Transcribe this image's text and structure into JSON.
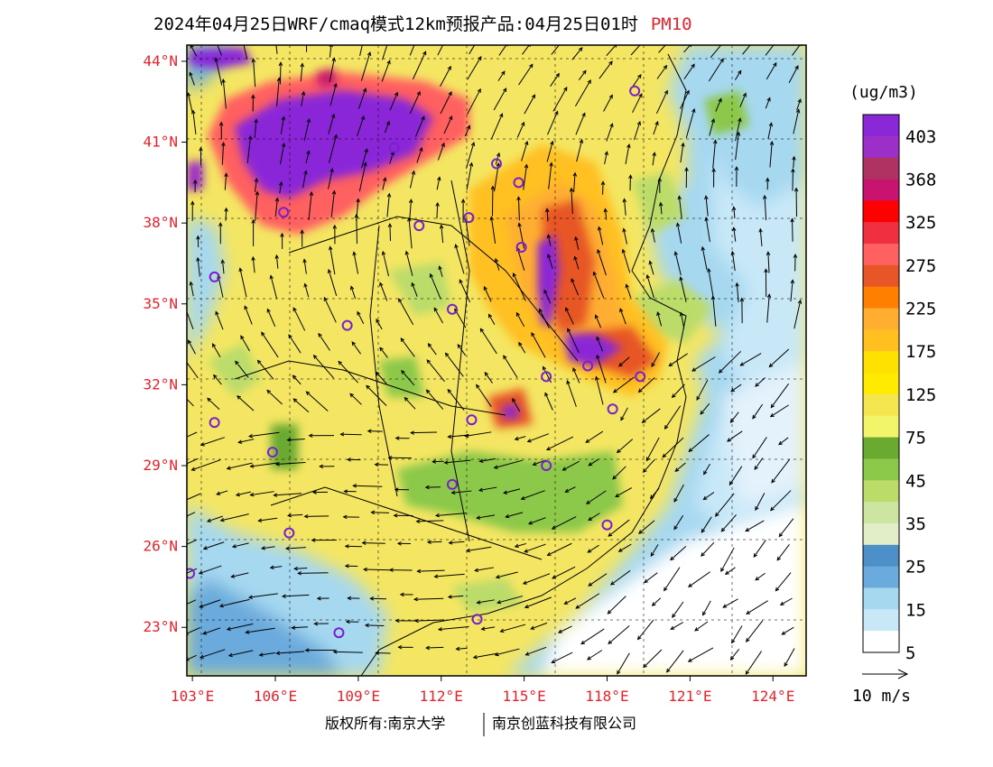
{
  "title": {
    "main": "2024年04月25日WRF/cmaq模式12km预报产品:04月25日01时",
    "species": "PM10"
  },
  "axes": {
    "lat_labels": [
      "44°N",
      "41°N",
      "38°N",
      "35°N",
      "32°N",
      "29°N",
      "26°N",
      "23°N"
    ],
    "lat_values": [
      44,
      41,
      38,
      35,
      32,
      29,
      26,
      23
    ],
    "lon_labels": [
      "103°E",
      "106°E",
      "109°E",
      "112°E",
      "115°E",
      "118°E",
      "121°E",
      "124°E"
    ],
    "lon_values": [
      103,
      106,
      109,
      112,
      115,
      118,
      121,
      124
    ],
    "lon_range": [
      102.8,
      125.2
    ],
    "lat_range": [
      21.2,
      44.6
    ]
  },
  "legend": {
    "unit": "(ug/m3)",
    "labels": [
      "403",
      "368",
      "325",
      "275",
      "225",
      "175",
      "125",
      "75",
      "45",
      "35",
      "25",
      "15",
      "5"
    ],
    "colors": [
      "#8a28d8",
      "#9b2fc8",
      "#ae3262",
      "#c8146e",
      "#ff0000",
      "#f03040",
      "#ff6060",
      "#e85628",
      "#ff8000",
      "#ffae30",
      "#ffc020",
      "#ffe100",
      "#ffea00",
      "#f5e650",
      "#f2f56a",
      "#6aaa30",
      "#8cc84a",
      "#bcdc6a",
      "#cce5a0",
      "#e2eec8",
      "#4d8fc8",
      "#6aaadc",
      "#a6d8f0",
      "#c8e8f8",
      "#ffffff"
    ]
  },
  "wind_scale": {
    "label": "10 m/s"
  },
  "footer": {
    "copyright_label": "版权所有:南京大学",
    "company": "南京创蓝科技有限公司"
  },
  "stations": [
    {
      "lon": 119.0,
      "lat": 42.9
    },
    {
      "lon": 110.3,
      "lat": 40.8
    },
    {
      "lon": 106.3,
      "lat": 38.4
    },
    {
      "lon": 111.2,
      "lat": 37.9
    },
    {
      "lon": 113.0,
      "lat": 38.2
    },
    {
      "lon": 114.0,
      "lat": 40.2
    },
    {
      "lon": 114.8,
      "lat": 39.5
    },
    {
      "lon": 114.9,
      "lat": 37.1
    },
    {
      "lon": 103.8,
      "lat": 36.0
    },
    {
      "lon": 108.6,
      "lat": 34.2
    },
    {
      "lon": 112.4,
      "lat": 34.8
    },
    {
      "lon": 115.8,
      "lat": 32.3
    },
    {
      "lon": 117.3,
      "lat": 32.7
    },
    {
      "lon": 119.2,
      "lat": 32.3
    },
    {
      "lon": 118.2,
      "lat": 31.1
    },
    {
      "lon": 113.1,
      "lat": 30.7
    },
    {
      "lon": 103.8,
      "lat": 30.6
    },
    {
      "lon": 105.9,
      "lat": 29.5
    },
    {
      "lon": 115.8,
      "lat": 29.0
    },
    {
      "lon": 112.4,
      "lat": 28.3
    },
    {
      "lon": 118.0,
      "lat": 26.8
    },
    {
      "lon": 106.5,
      "lat": 26.5
    },
    {
      "lon": 102.9,
      "lat": 25.0
    },
    {
      "lon": 108.3,
      "lat": 22.8
    },
    {
      "lon": 113.3,
      "lat": 23.3
    }
  ]
}
